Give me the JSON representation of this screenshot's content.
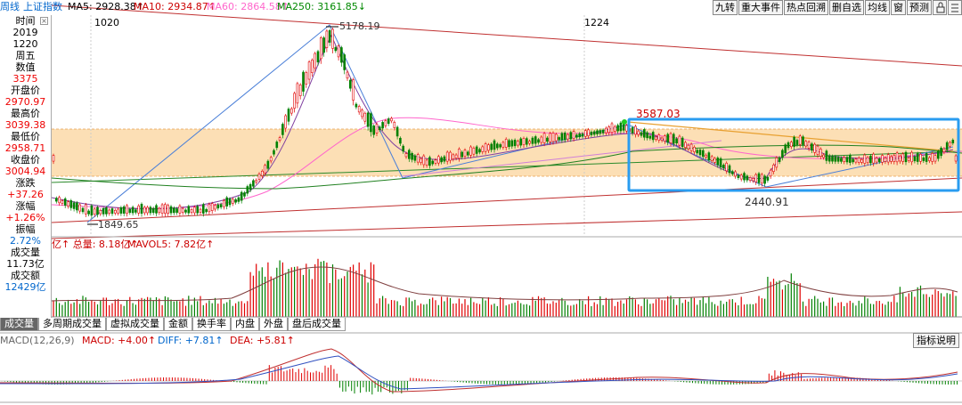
{
  "header": {
    "period": "周线",
    "index_name": "上证指数",
    "ma5": "MA5: 2928.38↑",
    "ma10": "MA10: 2934.87↑",
    "ma60": "MA60: 2864.58↑",
    "ma250": "MA250: 3161.85↓"
  },
  "toolbar": [
    "九转",
    "重大事件",
    "热点回溯",
    "删自选",
    "均线",
    "窗",
    "预测"
  ],
  "side_panel": [
    {
      "text": "时间",
      "cls": "dk"
    },
    {
      "text": "2019",
      "cls": "dk"
    },
    {
      "text": "1220",
      "cls": "dk"
    },
    {
      "text": "周五",
      "cls": "dk"
    },
    {
      "text": "数值",
      "cls": "dk"
    },
    {
      "text": "3375",
      "cls": "red"
    },
    {
      "text": "开盘价",
      "cls": "dk"
    },
    {
      "text": "2970.97",
      "cls": "red"
    },
    {
      "text": "最高价",
      "cls": "dk"
    },
    {
      "text": "3039.38",
      "cls": "red"
    },
    {
      "text": "最低价",
      "cls": "dk"
    },
    {
      "text": "2958.71",
      "cls": "red"
    },
    {
      "text": "收盘价",
      "cls": "dk"
    },
    {
      "text": "3004.94",
      "cls": "red"
    },
    {
      "text": "涨跌",
      "cls": "dk"
    },
    {
      "text": "+37.26",
      "cls": "red"
    },
    {
      "text": "涨幅",
      "cls": "dk"
    },
    {
      "text": "+1.26%",
      "cls": "red"
    },
    {
      "text": "振幅",
      "cls": "dk"
    },
    {
      "text": "2.72%",
      "cls": "blue"
    },
    {
      "text": "成交量",
      "cls": "dk"
    },
    {
      "text": "11.73亿",
      "cls": "dk"
    },
    {
      "text": "成交额",
      "cls": "dk"
    },
    {
      "text": "12429亿",
      "cls": "blue"
    }
  ],
  "chart": {
    "date_left": "1020",
    "date_right": "1224",
    "high_label": "5178.19",
    "low_label": "1849.65",
    "peak2_label": "3587.03",
    "low2_label": "2440.91"
  },
  "volume_header": {
    "total": "亿↑ 总量: 8.18亿↑",
    "mavol5": "MAVOL5: 7.82亿↑"
  },
  "tabs": [
    "成交量",
    "多周期成交量",
    "虚拟成交量",
    "金额",
    "换手率",
    "内盘",
    "外盘",
    "盘后成交量"
  ],
  "macd_header": {
    "name": "MACD(12,26,9)",
    "macd": "MACD: +4.00↑",
    "diff": "DIFF: +7.81↑",
    "dea": "DEA: +5.81↑"
  },
  "explain_button": "指标说明",
  "colors": {
    "up": "#e00000",
    "down": "#008000",
    "box": "#2a9cf0",
    "band": "#fbd9a8"
  }
}
